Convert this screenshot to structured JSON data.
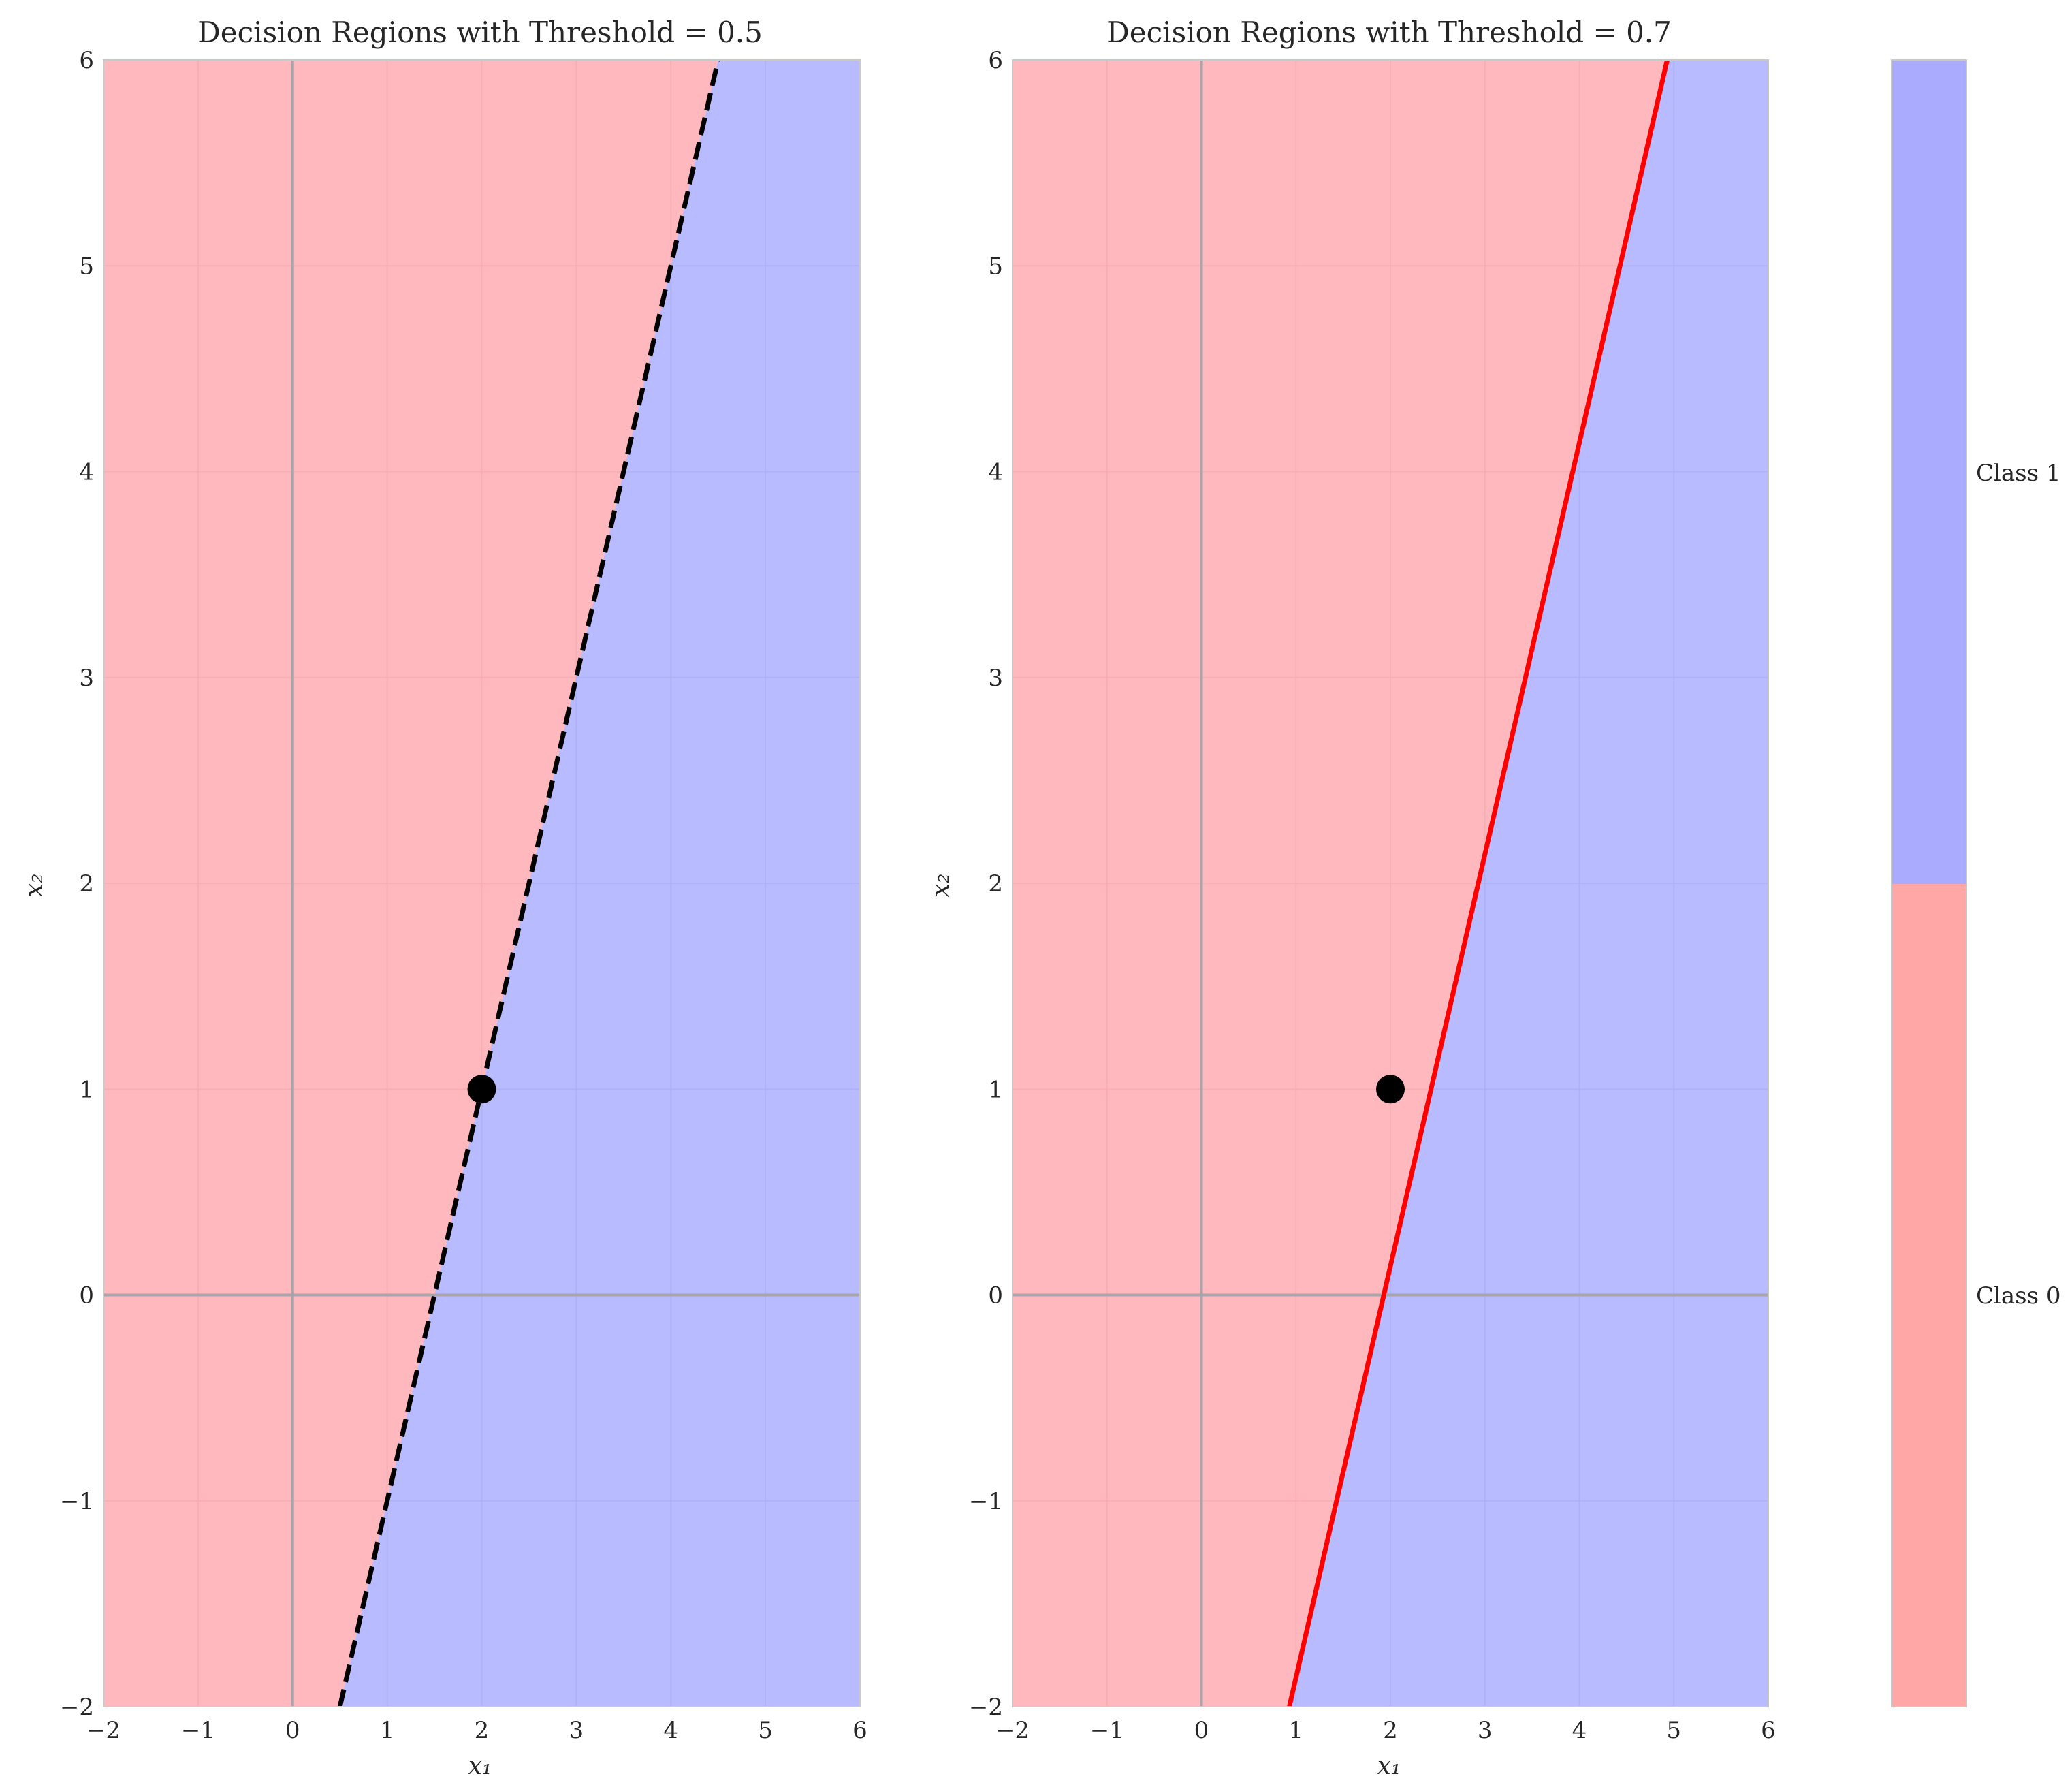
{
  "figure": {
    "colorbar": {
      "labels": [
        "Class 0",
        "Class 1"
      ],
      "colors": [
        "#ffa6a6",
        "#aaaaff"
      ],
      "split": 2
    },
    "colors": {
      "class0_fill": "#ffb8bd",
      "class1_fill": "#b8bbff",
      "axis_line": "#a9a4a9",
      "grid_class0": "#f3a7ac",
      "grid_class1": "#a9abef",
      "spine": "#c9c9c9",
      "point": "#000000"
    }
  },
  "chart_data": [
    {
      "type": "area",
      "title": "Decision Regions with Threshold = 0.5",
      "xlabel": "x₁",
      "ylabel": "x₂",
      "xlim": [
        -2,
        6
      ],
      "ylim": [
        -2,
        6
      ],
      "xticks": [
        -2,
        -1,
        0,
        1,
        2,
        3,
        4,
        5,
        6
      ],
      "yticks": [
        -2,
        -1,
        0,
        1,
        2,
        3,
        4,
        5,
        6
      ],
      "xtick_labels": [
        "−2",
        "−1",
        "0",
        "1",
        "2",
        "3",
        "4",
        "5",
        "6"
      ],
      "ytick_labels": [
        "−2",
        "−1",
        "0",
        "1",
        "2",
        "3",
        "4",
        "5",
        "6"
      ],
      "grid": true,
      "boundary": {
        "x": [
          0.5,
          4.5
        ],
        "y": [
          -2,
          6
        ],
        "color": "#000000",
        "style": "dashed"
      },
      "point": {
        "x": 2,
        "y": 1
      },
      "regions": {
        "left": "Class 0",
        "right": "Class 1"
      }
    },
    {
      "type": "area",
      "title": "Decision Regions with Threshold = 0.7",
      "xlabel": "x₁",
      "ylabel": "x₂",
      "xlim": [
        -2,
        6
      ],
      "ylim": [
        -2,
        6
      ],
      "xticks": [
        -2,
        -1,
        0,
        1,
        2,
        3,
        4,
        5,
        6
      ],
      "yticks": [
        -2,
        -1,
        0,
        1,
        2,
        3,
        4,
        5,
        6
      ],
      "xtick_labels": [
        "−2",
        "−1",
        "0",
        "1",
        "2",
        "3",
        "4",
        "5",
        "6"
      ],
      "ytick_labels": [
        "−2",
        "−1",
        "0",
        "1",
        "2",
        "3",
        "4",
        "5",
        "6"
      ],
      "grid": true,
      "boundary": {
        "x": [
          0.93,
          4.93
        ],
        "y": [
          -2,
          6
        ],
        "color": "#ff0000",
        "style": "solid"
      },
      "point": {
        "x": 2,
        "y": 1
      },
      "regions": {
        "left": "Class 0",
        "right": "Class 1"
      }
    }
  ]
}
